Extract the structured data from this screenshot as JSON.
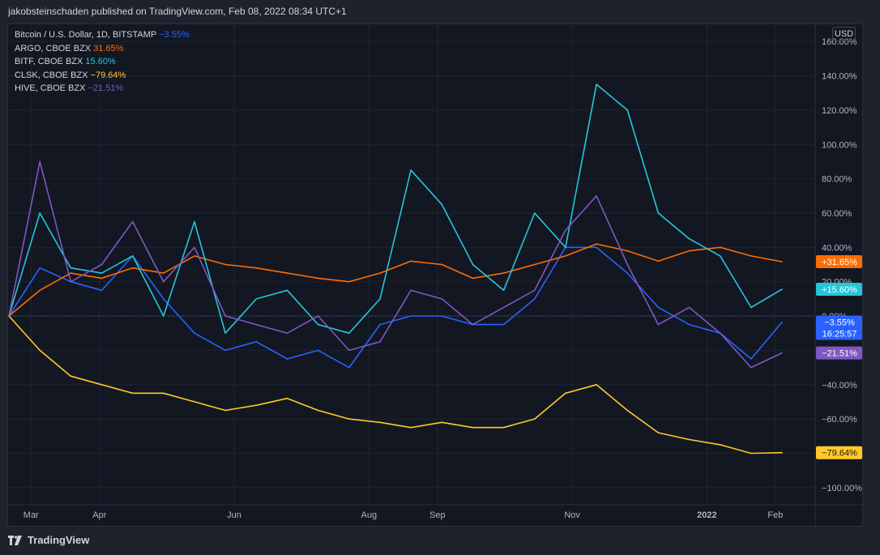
{
  "header": {
    "text": "jakobsteinschaden published on TradingView.com, Feb 08, 2022 08:34 UTC+1"
  },
  "brand": {
    "text": "TradingView"
  },
  "currency_button": "USD",
  "chart_data": {
    "type": "line",
    "x": [
      "2021-02-19",
      "2021-03-05",
      "2021-03-19",
      "2021-04-02",
      "2021-04-16",
      "2021-04-30",
      "2021-05-14",
      "2021-05-28",
      "2021-06-11",
      "2021-06-25",
      "2021-07-09",
      "2021-07-23",
      "2021-08-06",
      "2021-08-20",
      "2021-09-03",
      "2021-09-17",
      "2021-10-01",
      "2021-10-15",
      "2021-10-29",
      "2021-11-12",
      "2021-11-26",
      "2021-12-10",
      "2021-12-24",
      "2022-01-07",
      "2022-01-21",
      "2022-02-04"
    ],
    "x_ticks": [
      {
        "date": "2021-03-01",
        "label": "Mar"
      },
      {
        "date": "2021-04-01",
        "label": "Apr"
      },
      {
        "date": "2021-06-01",
        "label": "Jun"
      },
      {
        "date": "2021-08-01",
        "label": "Aug"
      },
      {
        "date": "2021-09-01",
        "label": "Sep"
      },
      {
        "date": "2021-11-01",
        "label": "Nov"
      },
      {
        "date": "2022-01-01",
        "label": "2022"
      },
      {
        "date": "2022-02-01",
        "label": "Feb"
      }
    ],
    "y_ticks": [
      160,
      140,
      120,
      100,
      80,
      60,
      40,
      20,
      0,
      -20,
      -40,
      -60,
      -80,
      -100
    ],
    "ylim": [
      -110,
      170
    ],
    "y_unit": "%",
    "grid": true,
    "legend_placement": "top-left",
    "series": [
      {
        "name": "Bitcoin / U.S. Dollar, 1D, BITSTAMP",
        "legend_value": "−3.55%",
        "label": "−3.55%",
        "sublabel": "16:25:57",
        "color": "#2962ff",
        "values": [
          0,
          28,
          20,
          15,
          35,
          10,
          -10,
          -20,
          -15,
          -25,
          -20,
          -30,
          -5,
          0,
          0,
          -5,
          -5,
          10,
          40,
          40,
          25,
          5,
          -5,
          -10,
          -25,
          -3.55
        ]
      },
      {
        "name": "ARGO, CBOE BZX",
        "legend_value": "31.65%",
        "label": "+31.65%",
        "color": "#ff6d00",
        "values": [
          0,
          15,
          25,
          22,
          28,
          25,
          35,
          30,
          28,
          25,
          22,
          20,
          25,
          32,
          30,
          22,
          25,
          30,
          35,
          42,
          38,
          32,
          38,
          40,
          35,
          31.65
        ]
      },
      {
        "name": "BITF, CBOE BZX",
        "legend_value": "15.60%",
        "label": "+15.60%",
        "color": "#26c6da",
        "values": [
          0,
          60,
          28,
          25,
          35,
          0,
          55,
          -10,
          10,
          15,
          -5,
          -10,
          10,
          85,
          65,
          30,
          15,
          60,
          40,
          135,
          120,
          60,
          45,
          35,
          5,
          15.6
        ]
      },
      {
        "name": "CLSK, CBOE BZX",
        "legend_value": "−79.64%",
        "label": "−79.64%",
        "color": "#ffca28",
        "values": [
          0,
          -20,
          -35,
          -40,
          -45,
          -45,
          -50,
          -55,
          -52,
          -48,
          -55,
          -60,
          -62,
          -65,
          -62,
          -65,
          -65,
          -60,
          -45,
          -40,
          -55,
          -68,
          -72,
          -75,
          -80,
          -79.64
        ]
      },
      {
        "name": "HIVE, CBOE BZX",
        "legend_value": "−21.51%",
        "label": "−21.51%",
        "color": "#7e57c2",
        "values": [
          0,
          90,
          20,
          30,
          55,
          20,
          40,
          0,
          -5,
          -10,
          0,
          -20,
          -15,
          15,
          10,
          -5,
          5,
          15,
          50,
          70,
          30,
          -5,
          5,
          -10,
          -30,
          -21.51
        ]
      }
    ],
    "baseline_label": "0.00%"
  }
}
